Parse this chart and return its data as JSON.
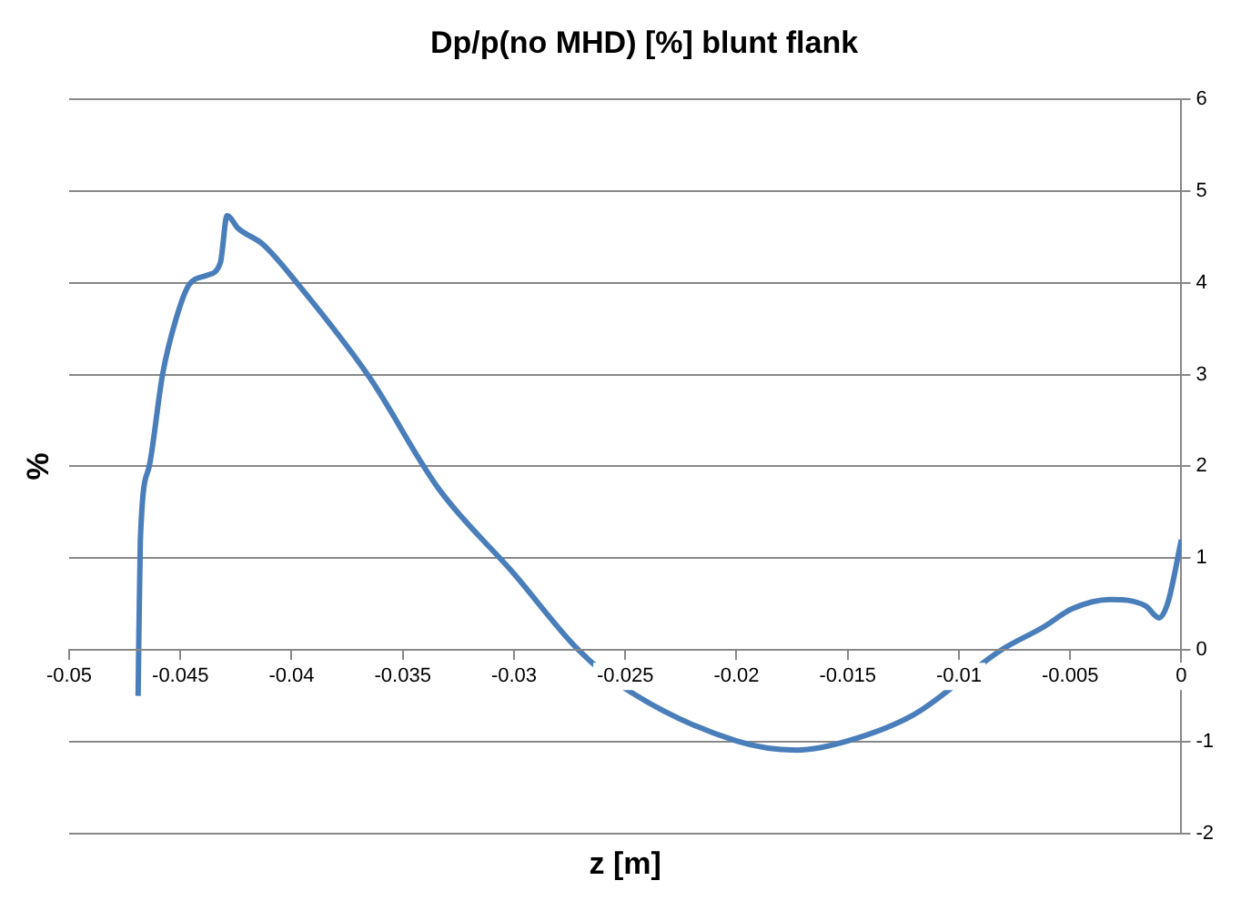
{
  "chart_data": {
    "type": "line",
    "title": "Dp/p(no MHD) [%] blunt flank",
    "xlabel": "z [m]",
    "ylabel": "%",
    "series": [
      {
        "color": "#4a7ebb",
        "x": [
          -0.0469,
          -0.0468,
          -0.0464,
          -0.0458,
          -0.0452,
          -0.0446,
          -0.0438,
          -0.0432,
          -0.0429,
          -0.0424,
          -0.0413,
          -0.0397,
          -0.0365,
          -0.0334,
          -0.03,
          -0.0271,
          -0.025,
          -0.02,
          -0.0173,
          -0.015,
          -0.012,
          -0.0081,
          -0.0062,
          -0.0049,
          -0.0032,
          -0.0016,
          -0.001,
          -0.0006,
          0
        ],
        "values": [
          -0.5,
          1.19,
          2.0,
          3.0,
          3.6,
          3.98,
          4.08,
          4.22,
          4.73,
          4.59,
          4.42,
          3.98,
          2.97,
          1.76,
          0.83,
          0,
          -0.42,
          -0.99,
          -1.09,
          -0.99,
          -0.7,
          0,
          0.25,
          0.45,
          0.55,
          0.48,
          0.35,
          0.52,
          1.2
        ]
      }
    ],
    "xlim": [
      -0.05,
      0
    ],
    "xticks": [
      -0.05,
      -0.045,
      -0.04,
      -0.035,
      -0.03,
      -0.025,
      -0.02,
      -0.015,
      -0.01,
      -0.005,
      0
    ],
    "ylim": [
      -2,
      6
    ],
    "yticks": [
      -2,
      -1,
      0,
      1,
      2,
      3,
      4,
      5,
      6
    ],
    "grid": "y",
    "legend": false,
    "marker": "none",
    "line_style": "solid"
  }
}
